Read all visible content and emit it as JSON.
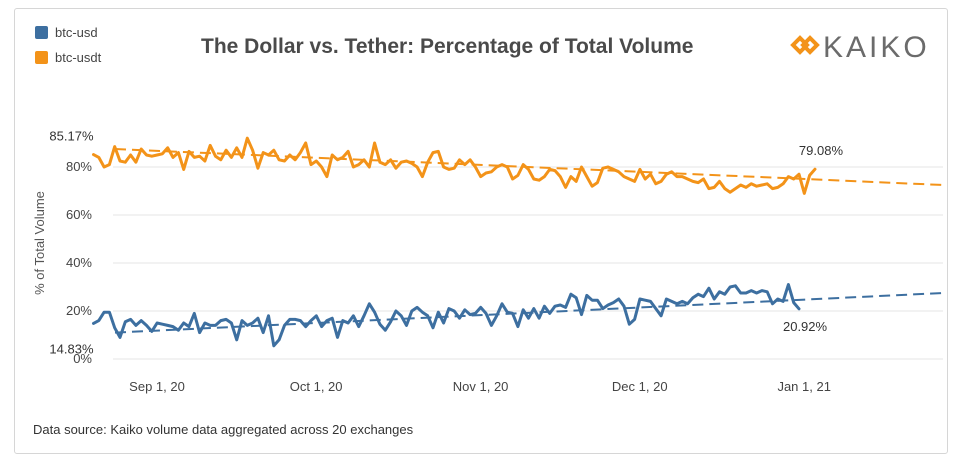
{
  "title": "The Dollar vs. Tether: Percentage of Total Volume",
  "logo": "KAIKO",
  "source": "Data source: Kaiko volume data aggregated across 20 exchanges",
  "colors": {
    "btc_usd": "#3d6fa0",
    "btc_usdt": "#f39319",
    "grid": "#e6e6e6",
    "title": "#4a4a4a"
  },
  "chart_data": {
    "type": "line",
    "title": "The Dollar vs. Tether: Percentage of Total Volume",
    "xlabel": "",
    "ylabel": "% of Total Volume",
    "ylim": [
      0,
      100
    ],
    "yticks": [
      "0%",
      "20%",
      "40%",
      "60%",
      "80%"
    ],
    "xticks": [
      {
        "label": "Sep 1, 20",
        "date": "2020-09-01"
      },
      {
        "label": "Oct 1, 20",
        "date": "2020-10-01"
      },
      {
        "label": "Nov 1, 20",
        "date": "2020-11-01"
      },
      {
        "label": "Dec 1, 20",
        "date": "2020-12-01"
      },
      {
        "label": "Jan 1, 21",
        "date": "2021-01-01"
      }
    ],
    "legend": "top-left",
    "grid": "horizontal",
    "series": [
      {
        "name": "btc-usd",
        "color": "#3d6fa0",
        "start_date": "2020-08-27",
        "values": [
          14.83,
          16,
          19.5,
          19.5,
          13,
          9,
          15.5,
          16.5,
          14,
          16,
          14,
          11.5,
          15,
          14.5,
          14,
          13.5,
          12,
          15,
          13.5,
          19,
          11,
          15,
          14,
          14,
          16,
          16.5,
          15,
          8,
          16,
          14,
          15,
          17,
          11,
          18,
          5.5,
          8,
          14,
          16.5,
          16.5,
          16,
          13.5,
          16,
          18,
          13.5,
          16,
          17,
          9,
          16,
          15,
          18,
          13.5,
          18,
          23,
          19.5,
          14.5,
          12,
          15.5,
          20,
          18,
          14,
          20,
          21.5,
          19.5,
          18,
          13,
          19.5,
          15,
          21,
          20,
          17,
          20.5,
          18.5,
          19,
          21.5,
          19,
          14,
          18,
          23,
          19.5,
          19,
          13.5,
          20.5,
          17,
          21,
          17,
          22,
          19,
          22,
          22.5,
          21.5,
          27,
          25.5,
          18.5,
          26.5,
          24.5,
          24.5,
          21,
          22.5,
          23.5,
          25,
          22,
          14.5,
          16.5,
          25,
          24.5,
          24,
          21,
          18,
          25,
          24,
          23,
          24,
          23,
          25.5,
          27,
          26,
          29.5,
          25,
          28,
          27,
          30,
          30.5,
          27.5,
          27.5,
          28.5,
          27.5,
          28.5,
          28,
          23,
          25,
          24,
          31,
          23.5,
          20.92
        ]
      },
      {
        "name": "btc-usdt",
        "color": "#f39319",
        "start_date": "2020-08-27",
        "values": [
          85.17,
          84,
          80,
          81,
          88.5,
          82.5,
          82,
          85,
          82,
          87.5,
          85,
          84.5,
          85,
          85.5,
          88,
          84,
          86,
          79,
          86.5,
          84,
          84.5,
          82.5,
          89,
          84.5,
          83,
          87,
          84,
          88,
          84,
          92,
          87,
          79.5,
          86,
          85,
          87,
          83,
          82.5,
          85,
          83,
          86,
          90,
          81,
          82.5,
          80,
          76,
          85,
          83,
          84,
          86.5,
          80,
          81,
          83,
          80,
          90,
          82,
          81,
          83,
          79.5,
          82,
          82.5,
          81.5,
          80,
          76,
          82,
          86,
          86.5,
          80,
          79,
          79.5,
          83,
          81,
          83,
          80,
          76,
          77.5,
          78,
          80,
          81,
          80,
          75,
          76.5,
          81,
          79,
          75,
          74.5,
          76,
          79,
          78.5,
          76,
          71.5,
          76,
          74,
          80,
          76,
          72,
          73.5,
          79.5,
          80,
          79,
          78,
          76,
          75,
          74,
          79,
          75,
          77,
          73,
          74,
          77,
          78,
          76,
          76,
          75,
          74,
          73.5,
          75,
          71,
          71.5,
          74,
          71,
          69.5,
          71,
          72.5,
          71.5,
          73,
          72,
          72.5,
          73,
          71,
          71.5,
          73,
          76,
          75,
          77,
          69,
          76.5,
          79.08
        ]
      }
    ],
    "trendlines": [
      {
        "series": "btc-usd",
        "start_value": 11,
        "end_value": 27.5,
        "style": "dashed"
      },
      {
        "series": "btc-usdt",
        "start_value": 87.5,
        "end_value": 72.5,
        "style": "dashed"
      }
    ],
    "annotations": [
      {
        "text": "85.17%",
        "series": "btc-usdt",
        "at": "start"
      },
      {
        "text": "79.08%",
        "series": "btc-usdt",
        "at": "end"
      },
      {
        "text": "14.83%",
        "series": "btc-usd",
        "at": "start"
      },
      {
        "text": "20.92%",
        "series": "btc-usd",
        "at": "end"
      }
    ]
  }
}
